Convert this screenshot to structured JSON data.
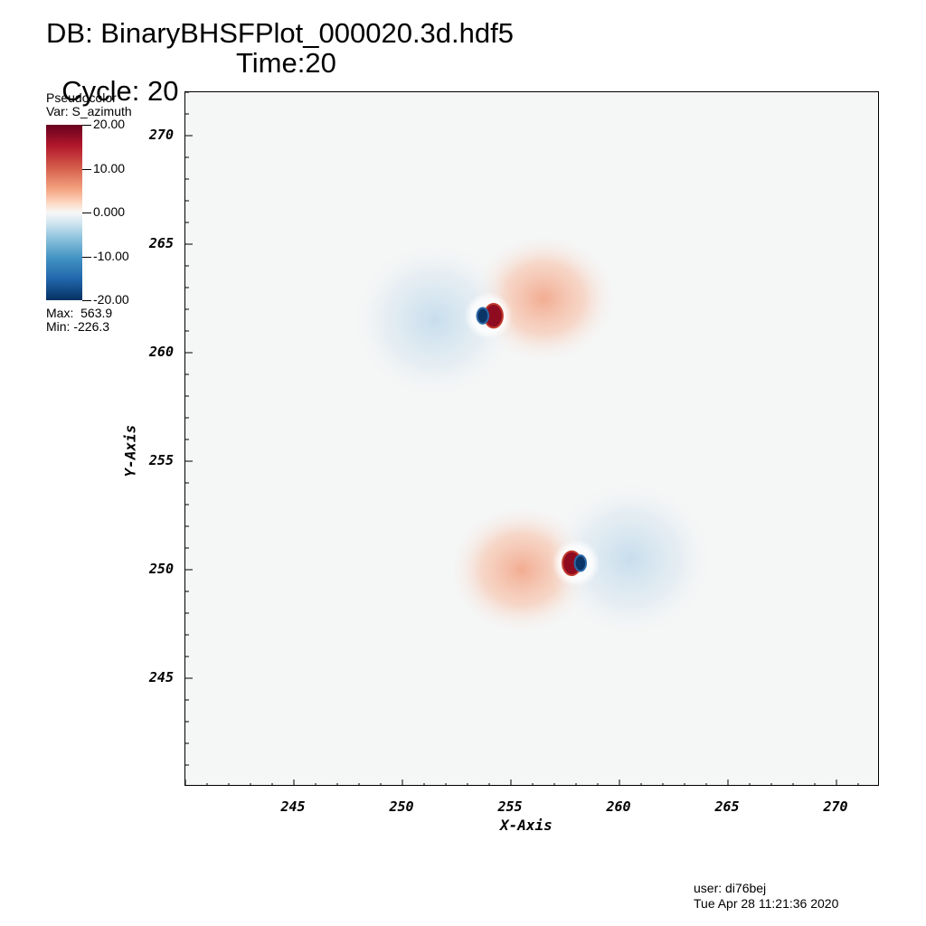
{
  "header": {
    "db_title": "DB: BinaryBHSFPlot_000020.3d.hdf5",
    "cycle": "Cycle: 20",
    "time": "Time:20"
  },
  "legend": {
    "plot_type": "Pseudocolor",
    "variable": "Var: S_azimuth",
    "tick_labels": [
      "20.00",
      "10.00",
      "0.000",
      "-10.00",
      "-20.00"
    ],
    "max_label": "Max:  563.9",
    "min_label": "Min: -226.3"
  },
  "chart_data": {
    "type": "heatmap",
    "colormap": "diverging red-white-blue",
    "xlabel": "X-Axis",
    "ylabel": "Y-Axis",
    "xlim": [
      240,
      272
    ],
    "ylim": [
      240,
      272
    ],
    "x_ticks": [
      245,
      250,
      255,
      260,
      265,
      270
    ],
    "y_ticks": [
      245,
      250,
      255,
      260,
      265,
      270
    ],
    "color_range": [
      -20,
      20
    ],
    "features": [
      {
        "x": 254.2,
        "y": 261.7,
        "value": 563.9
      },
      {
        "x": 253.7,
        "y": 261.7,
        "value": -226.3
      },
      {
        "x": 257.8,
        "y": 250.3,
        "value": 563.9
      },
      {
        "x": 258.2,
        "y": 250.3,
        "value": -226.3
      },
      {
        "x": 256.5,
        "y": 262.5,
        "value": 8
      },
      {
        "x": 251.5,
        "y": 261.5,
        "value": -4
      },
      {
        "x": 255.5,
        "y": 250,
        "value": 8
      },
      {
        "x": 260.5,
        "y": 250.5,
        "value": -4
      }
    ]
  },
  "footer": {
    "user": "user: di76bej",
    "date": "Tue Apr 28 11:21:36 2020"
  }
}
